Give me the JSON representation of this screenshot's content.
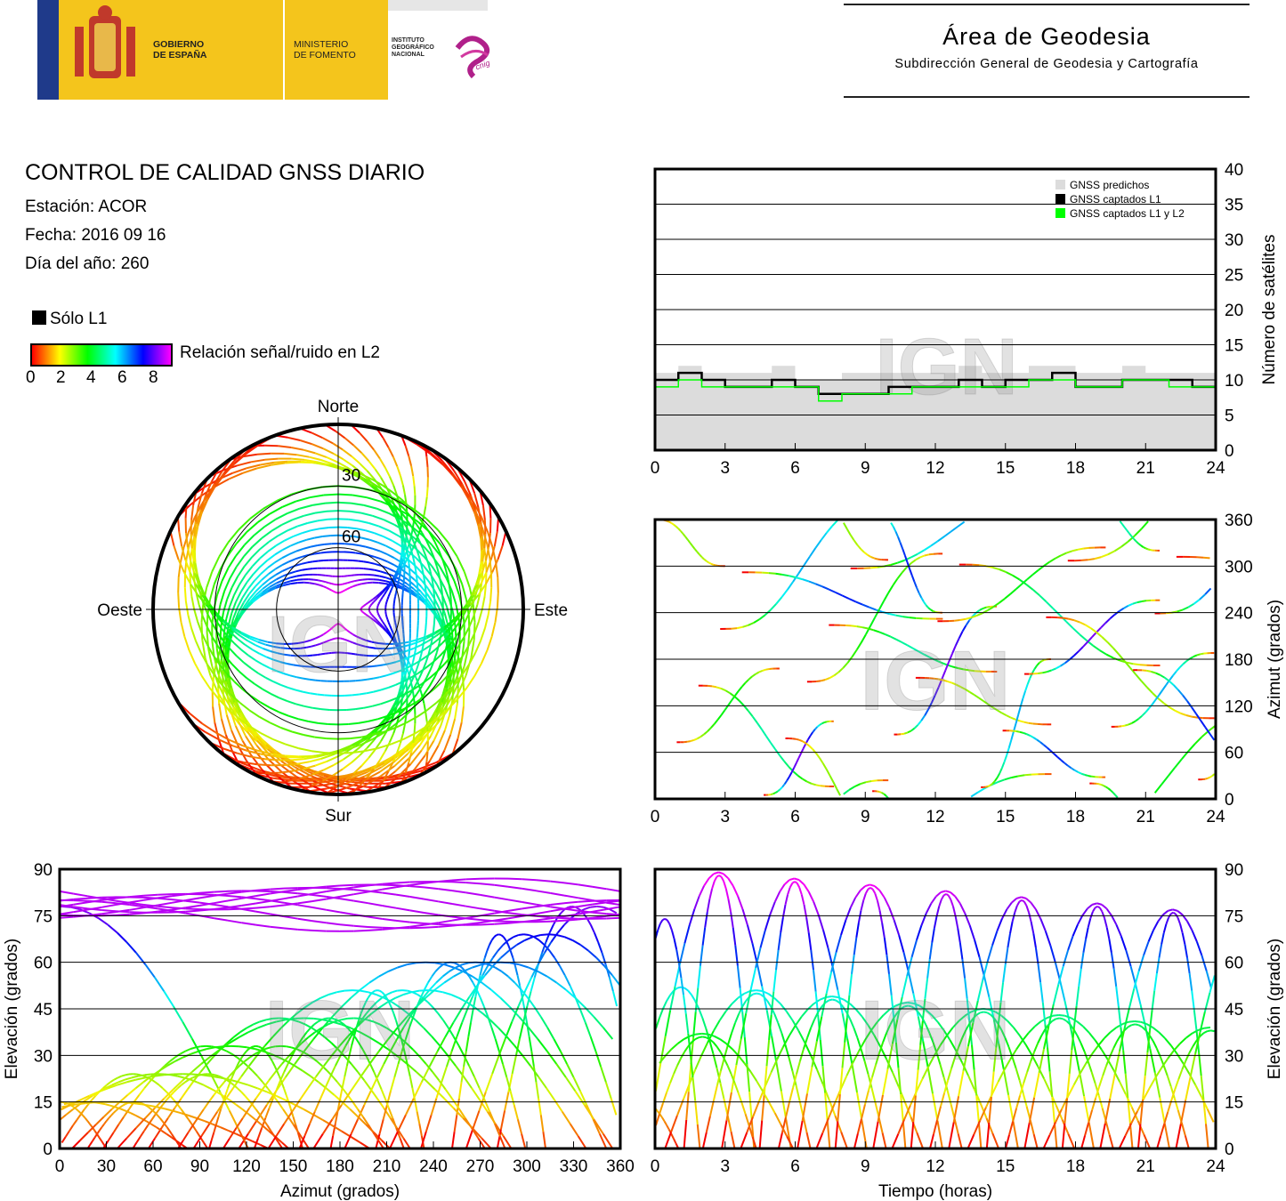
{
  "header": {
    "gov_lines": [
      "GOBIERNO",
      "DE ESPAÑA"
    ],
    "min_lines": [
      "MINISTERIO",
      "DE FOMENTO"
    ],
    "ign_lines": [
      "INSTITUTO",
      "GEOGRÁFICO",
      "NACIONAL"
    ],
    "cnig": "cnig",
    "area_title": "Área de Geodesia",
    "area_subtitle": "Subdirección General de Geodesia y Cartografía"
  },
  "info": {
    "title": "CONTROL DE CALIDAD GNSS DIARIO",
    "station": "Estación: ACOR",
    "date": "Fecha: 2016 09 16",
    "doy": "Día del año: 260"
  },
  "legend": {
    "l1_only": "Sólo L1",
    "snr_label": "Relación señal/ruido en L2",
    "snr_ticks": [
      "0",
      "2",
      "4",
      "6",
      "8"
    ]
  },
  "watermark": "IGN",
  "colors": {
    "predicted": "#dcdcdc",
    "l1": "#000000",
    "l1l2": "#00ff00"
  },
  "chart_data": [
    {
      "id": "satellites",
      "type": "area",
      "ylabel": "Número de satélites",
      "xlim": [
        0,
        24
      ],
      "ylim": [
        0,
        40
      ],
      "xticks": [
        "0",
        "3",
        "6",
        "9",
        "12",
        "15",
        "18",
        "21",
        "24"
      ],
      "yticks": [
        "0",
        "5",
        "10",
        "15",
        "20",
        "25",
        "30",
        "35",
        "40"
      ],
      "legend": [
        "GNSS predichos",
        "GNSS captados L1",
        "GNSS captados L1 y L2"
      ],
      "legend_position": "top-right",
      "x": [
        0,
        1,
        2,
        3,
        4,
        5,
        6,
        7,
        8,
        9,
        10,
        11,
        12,
        13,
        14,
        15,
        16,
        17,
        18,
        19,
        20,
        21,
        22,
        23,
        24
      ],
      "series": [
        {
          "name": "GNSS predichos",
          "values": [
            11,
            12,
            11,
            11,
            11,
            12,
            10,
            10,
            11,
            11,
            11,
            11,
            11,
            12,
            11,
            11,
            12,
            12,
            11,
            11,
            12,
            11,
            11,
            11,
            11
          ]
        },
        {
          "name": "GNSS captados L1",
          "values": [
            10,
            11,
            10,
            9,
            9,
            10,
            9,
            8,
            8,
            8,
            9,
            9,
            9,
            10,
            9,
            10,
            10,
            11,
            9,
            9,
            10,
            10,
            10,
            9,
            9
          ]
        },
        {
          "name": "GNSS captados L1 y L2",
          "values": [
            9,
            10,
            9,
            9,
            9,
            9,
            9,
            7,
            8,
            8,
            8,
            9,
            9,
            9,
            9,
            9,
            10,
            10,
            9,
            9,
            10,
            10,
            9,
            9,
            9
          ]
        }
      ]
    },
    {
      "id": "skyplot",
      "type": "scatter",
      "labels": {
        "north": "Norte",
        "south": "Sur",
        "east": "Este",
        "west": "Oeste"
      },
      "rings": [
        "30",
        "60"
      ]
    },
    {
      "id": "azimuth_time",
      "type": "scatter",
      "ylabel": "Azimut (grados)",
      "xlim": [
        0,
        24
      ],
      "ylim": [
        0,
        360
      ],
      "xticks": [
        "0",
        "3",
        "6",
        "9",
        "12",
        "15",
        "18",
        "21",
        "24"
      ],
      "yticks": [
        "0",
        "60",
        "120",
        "180",
        "240",
        "300",
        "360"
      ]
    },
    {
      "id": "elev_azimuth",
      "type": "scatter",
      "xlabel": "Azimut (grados)",
      "ylabel": "Elevación (grados)",
      "xlim": [
        0,
        360
      ],
      "ylim": [
        0,
        90
      ],
      "xticks": [
        "0",
        "30",
        "60",
        "90",
        "120",
        "150",
        "180",
        "210",
        "240",
        "270",
        "300",
        "330",
        "360"
      ],
      "yticks": [
        "0",
        "15",
        "30",
        "45",
        "60",
        "75",
        "90"
      ]
    },
    {
      "id": "elev_time",
      "type": "scatter",
      "xlabel": "Tiempo (horas)",
      "ylabel": "Elevación (grados)",
      "xlim": [
        0,
        24
      ],
      "ylim": [
        0,
        90
      ],
      "xticks": [
        "0",
        "3",
        "6",
        "9",
        "12",
        "15",
        "18",
        "21",
        "24"
      ],
      "yticks": [
        "0",
        "15",
        "30",
        "45",
        "60",
        "75",
        "90"
      ]
    }
  ]
}
